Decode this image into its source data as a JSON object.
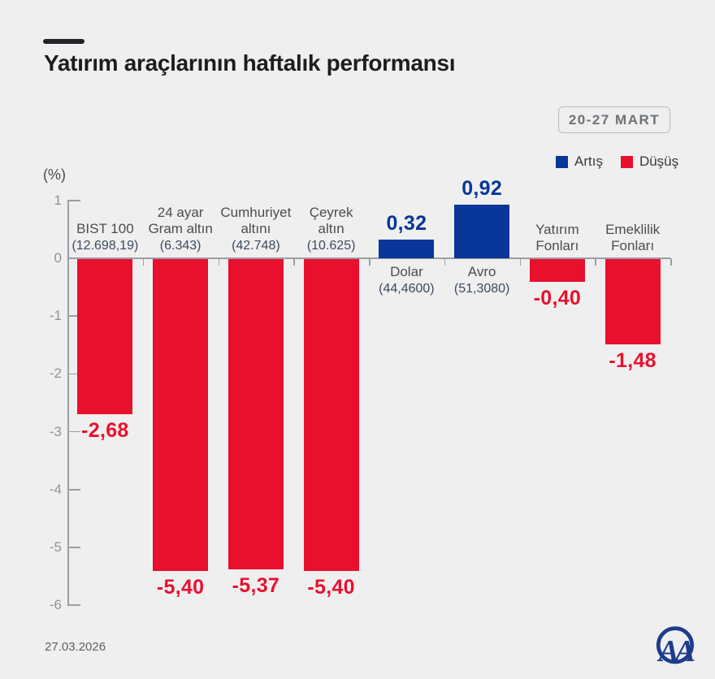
{
  "header": {
    "title": "Yatırım araçlarının haftalık performansı",
    "date_range": "20-27 MART"
  },
  "chart_data": {
    "type": "bar",
    "title": "Yatırım araçlarının haftalık performansı",
    "period": "20-27 MART",
    "unit_label": "(%)",
    "ylim": [
      -6,
      1
    ],
    "yticks": [
      {
        "label": "1",
        "value": 1
      },
      {
        "label": "0",
        "value": 0
      },
      {
        "label": "-1",
        "value": -1
      },
      {
        "label": "-2",
        "value": -2
      },
      {
        "label": "-3",
        "value": -3
      },
      {
        "label": "-4",
        "value": -4
      },
      {
        "label": "-5",
        "value": -5
      },
      {
        "label": "-6",
        "value": -6
      }
    ],
    "legend": [
      {
        "label": "Artış",
        "color": "#083699"
      },
      {
        "label": "Düşüş",
        "color": "#e9102d"
      }
    ],
    "colors": {
      "increase": "#083699",
      "decrease": "#e9102d"
    },
    "categories": [
      {
        "label_lines": [
          "BIST 100"
        ],
        "detail": "(12.698,19)",
        "change": -2.68,
        "change_label": "-2,68"
      },
      {
        "label_lines": [
          "24 ayar",
          "Gram altın"
        ],
        "detail": "(6.343)",
        "change": -5.4,
        "change_label": "-5,40"
      },
      {
        "label_lines": [
          "Cumhuriyet",
          "altını"
        ],
        "detail": "(42.748)",
        "change": -5.37,
        "change_label": "-5,37"
      },
      {
        "label_lines": [
          "Çeyrek",
          "altın"
        ],
        "detail": "(10.625)",
        "change": -5.4,
        "change_label": "-5,40"
      },
      {
        "label_lines": [
          "Dolar"
        ],
        "detail": "(44,4600)",
        "change": 0.32,
        "change_label": "0,32"
      },
      {
        "label_lines": [
          "Avro"
        ],
        "detail": "(51,3080)",
        "change": 0.92,
        "change_label": "0,92"
      },
      {
        "label_lines": [
          "Yatırım",
          "Fonları"
        ],
        "detail": null,
        "change": -0.4,
        "change_label": "-0,40"
      },
      {
        "label_lines": [
          "Emeklilik",
          "Fonları"
        ],
        "detail": null,
        "change": -1.48,
        "change_label": "-1,48"
      }
    ]
  },
  "footer": {
    "date": "27.03.2026",
    "logo": "AA"
  }
}
